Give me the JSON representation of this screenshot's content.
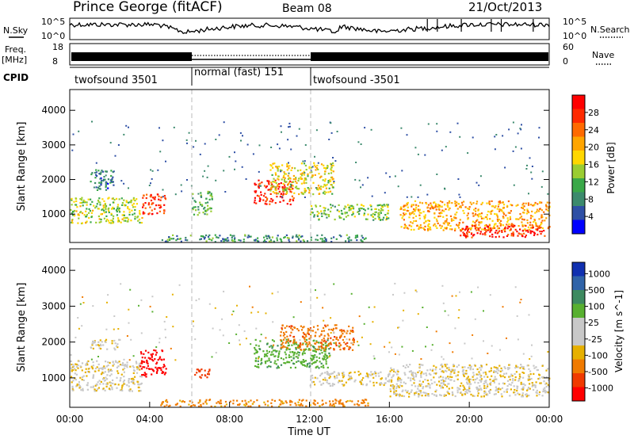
{
  "header": {
    "station": "Prince George (fitACF)",
    "beam": "Beam 08",
    "date": "21/Oct/2013"
  },
  "strips": {
    "nsky_label": "N.Sky",
    "nsky_ticks": [
      "10^5",
      "10^0"
    ],
    "nsearch_label": "N.Search",
    "nsearch_ticks": [
      "10^5",
      "10^0"
    ],
    "freq_label_1": "Freq.",
    "freq_label_2": "[MHz]",
    "freq_ticks": [
      "18",
      "8"
    ],
    "nave_label": "Nave",
    "nave_ticks": [
      "60",
      "0"
    ],
    "cpid_label": "CPID"
  },
  "cpid_segments": [
    {
      "label": "twofsound 3501",
      "start_hour": 0,
      "end_hour": 6
    },
    {
      "label": "normal (fast) 151",
      "start_hour": 6,
      "end_hour": 12
    },
    {
      "label": "twofsound -3501",
      "start_hour": 12,
      "end_hour": 24
    }
  ],
  "colors": {
    "power_scale": [
      "#0000ff",
      "#2e4fa5",
      "#3c8a6d",
      "#3aa848",
      "#9acd32",
      "#ffd700",
      "#ffa500",
      "#ff6a00",
      "#ff2a00",
      "#ff0000"
    ],
    "velocity_scale": [
      "#1030b0",
      "#2f63a8",
      "#3d8a60",
      "#58b030",
      "#c8c8c8",
      "#c8c8c8",
      "#e6b000",
      "#f07a00",
      "#f03a00",
      "#ff0000"
    ]
  },
  "chart_data": [
    {
      "type": "heatmap",
      "title": "Power",
      "xlabel": "Time UT",
      "ylabel": "Slant Range [km]",
      "x_ticks": [
        "00:00",
        "04:00",
        "08:00",
        "12:00",
        "16:00",
        "20:00",
        "00:00"
      ],
      "y_ticks": [
        "1000",
        "2000",
        "3000",
        "4000"
      ],
      "xlim_hours": [
        0,
        24
      ],
      "ylim_km": [
        180,
        4600
      ],
      "colorbar": {
        "label": "Power [dB]",
        "ticks": [
          "4",
          "8",
          "12",
          "16",
          "20",
          "24",
          "28"
        ],
        "range": [
          0,
          30
        ]
      },
      "regions": [
        {
          "x": [
            0,
            3.6
          ],
          "y": [
            750,
            1500
          ],
          "value": 14
        },
        {
          "x": [
            1,
            2.2
          ],
          "y": [
            1700,
            2300
          ],
          "value": 6
        },
        {
          "x": [
            3.6,
            4.8
          ],
          "y": [
            1000,
            1600
          ],
          "value": 27
        },
        {
          "x": [
            6.1,
            7.1
          ],
          "y": [
            1000,
            1700
          ],
          "value": 10
        },
        {
          "x": [
            9.2,
            11.2
          ],
          "y": [
            1300,
            2000
          ],
          "value": 28
        },
        {
          "x": [
            10,
            13.2
          ],
          "y": [
            1600,
            2500
          ],
          "value": 16
        },
        {
          "x": [
            12,
            16
          ],
          "y": [
            850,
            1300
          ],
          "value": 12
        },
        {
          "x": [
            16.5,
            24
          ],
          "y": [
            550,
            1400
          ],
          "value": 20
        },
        {
          "x": [
            19.5,
            23.8
          ],
          "y": [
            350,
            700
          ],
          "value": 28
        },
        {
          "x": [
            4.5,
            15
          ],
          "y": [
            220,
            420
          ],
          "value": 8
        }
      ]
    },
    {
      "type": "heatmap",
      "title": "Velocity",
      "xlabel": "Time UT",
      "ylabel": "Slant Range [km]",
      "x_ticks": [
        "00:00",
        "04:00",
        "08:00",
        "12:00",
        "16:00",
        "20:00",
        "00:00"
      ],
      "y_ticks": [
        "1000",
        "2000",
        "3000",
        "4000"
      ],
      "xlim_hours": [
        0,
        24
      ],
      "ylim_km": [
        180,
        4600
      ],
      "colorbar": {
        "label": "Velocity [m s^-1]",
        "ticks": [
          "1000",
          "500",
          "100",
          "25",
          "-25",
          "-100",
          "-500",
          "-1000"
        ],
        "range": [
          1000,
          -1000
        ]
      },
      "regions": [
        {
          "x": [
            0,
            3.6
          ],
          "y": [
            650,
            1500
          ],
          "value": 0
        },
        {
          "x": [
            3.5,
            4.8
          ],
          "y": [
            1050,
            1800
          ],
          "value": -600
        },
        {
          "x": [
            1,
            2.5
          ],
          "y": [
            1800,
            2100
          ],
          "value": 0
        },
        {
          "x": [
            6.2,
            7.1
          ],
          "y": [
            1000,
            1300
          ],
          "value": -400
        },
        {
          "x": [
            9.2,
            13
          ],
          "y": [
            1300,
            2100
          ],
          "value": 200
        },
        {
          "x": [
            10.5,
            14.2
          ],
          "y": [
            1800,
            2500
          ],
          "value": -200
        },
        {
          "x": [
            12,
            16
          ],
          "y": [
            800,
            1200
          ],
          "value": 0
        },
        {
          "x": [
            16,
            24
          ],
          "y": [
            500,
            1400
          ],
          "value": 0
        },
        {
          "x": [
            4.5,
            15
          ],
          "y": [
            220,
            420
          ],
          "value": -150
        }
      ]
    }
  ]
}
